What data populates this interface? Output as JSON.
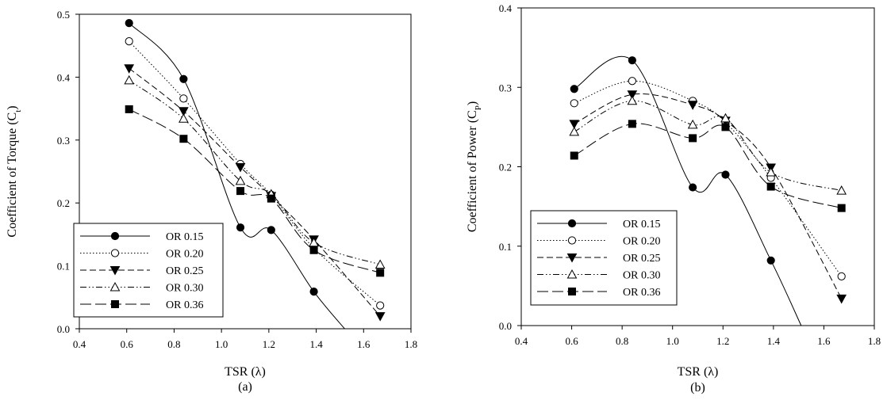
{
  "chart_data": [
    {
      "id": "a",
      "type": "line",
      "panel_label": "(a)",
      "xlabel": "TSR (λ)",
      "ylabel_main": "Coefficient of Torque (C",
      "ylabel_sub": "t",
      "ylabel_end": ")",
      "xlim": [
        0.4,
        1.8
      ],
      "ylim": [
        0.0,
        0.5
      ],
      "xticks": [
        0.4,
        0.6,
        0.8,
        1.0,
        1.2,
        1.4,
        1.6,
        1.8
      ],
      "yticks": [
        0.0,
        0.1,
        0.2,
        0.3,
        0.4,
        0.5
      ],
      "xtick_labels": [
        "0.4",
        "0.6",
        "0.8",
        "1.0",
        "1.2",
        "1.4",
        "1.6",
        "1.8"
      ],
      "ytick_labels": [
        "0.0",
        "0.1",
        "0.2",
        "0.3",
        "0.4",
        "0.5"
      ],
      "legend_position": "bottom-left",
      "series": [
        {
          "name": "OR 0.15",
          "marker": "circle-filled",
          "dash": "",
          "x": [
            0.61,
            0.84,
            1.08,
            1.21,
            1.39,
            1.52
          ],
          "y": [
            0.486,
            0.397,
            0.161,
            0.157,
            0.059,
            0.0
          ],
          "marker_count": 5
        },
        {
          "name": "OR 0.20",
          "marker": "circle-open",
          "dash": "1.5,2.5",
          "x": [
            0.61,
            0.84,
            1.08,
            1.21,
            1.39,
            1.67
          ],
          "y": [
            0.457,
            0.366,
            0.262,
            0.213,
            0.128,
            0.037
          ],
          "marker_count": 6
        },
        {
          "name": "OR 0.25",
          "marker": "triangle-down-filled",
          "dash": "8,4",
          "x": [
            0.61,
            0.84,
            1.08,
            1.21,
            1.39,
            1.67
          ],
          "y": [
            0.414,
            0.346,
            0.257,
            0.211,
            0.142,
            0.02
          ],
          "marker_count": 6
        },
        {
          "name": "OR 0.30",
          "marker": "triangle-up-open",
          "dash": "8,3,1.5,3,1.5,3",
          "x": [
            0.61,
            0.84,
            1.08,
            1.21,
            1.39,
            1.67
          ],
          "y": [
            0.395,
            0.334,
            0.235,
            0.214,
            0.137,
            0.102
          ],
          "marker_count": 6
        },
        {
          "name": "OR 0.36",
          "marker": "square-filled",
          "dash": "14,5",
          "x": [
            0.61,
            0.84,
            1.08,
            1.21,
            1.39,
            1.67
          ],
          "y": [
            0.349,
            0.302,
            0.219,
            0.207,
            0.125,
            0.089
          ],
          "marker_count": 6
        }
      ]
    },
    {
      "id": "b",
      "type": "line",
      "panel_label": "(b)",
      "xlabel": "TSR (λ)",
      "ylabel_main": "Coefficient of Power (C",
      "ylabel_sub": "P",
      "ylabel_end": ")",
      "xlim": [
        0.4,
        1.8
      ],
      "ylim": [
        0.0,
        0.4
      ],
      "xticks": [
        0.4,
        0.6,
        0.8,
        1.0,
        1.2,
        1.4,
        1.6,
        1.8
      ],
      "yticks": [
        0.0,
        0.1,
        0.2,
        0.3,
        0.4
      ],
      "xtick_labels": [
        "0.4",
        "0.6",
        "0.8",
        "1.0",
        "1.2",
        "1.4",
        "1.6",
        "1.8"
      ],
      "ytick_labels": [
        "0.0",
        "0.1",
        "0.2",
        "0.3",
        "0.4"
      ],
      "legend_position": "bottom-left",
      "series": [
        {
          "name": "OR 0.15",
          "marker": "circle-filled",
          "dash": "",
          "x": [
            0.61,
            0.84,
            1.08,
            1.21,
            1.39,
            1.51
          ],
          "y": [
            0.298,
            0.334,
            0.174,
            0.19,
            0.082,
            0.0
          ],
          "marker_count": 5
        },
        {
          "name": "OR 0.20",
          "marker": "circle-open",
          "dash": "1.5,2.5",
          "x": [
            0.61,
            0.84,
            1.08,
            1.21,
            1.39,
            1.67
          ],
          "y": [
            0.28,
            0.308,
            0.283,
            0.256,
            0.186,
            0.062
          ],
          "marker_count": 6
        },
        {
          "name": "OR 0.25",
          "marker": "triangle-down-filled",
          "dash": "8,4",
          "x": [
            0.61,
            0.84,
            1.08,
            1.21,
            1.39,
            1.67
          ],
          "y": [
            0.254,
            0.291,
            0.278,
            0.258,
            0.199,
            0.034
          ],
          "marker_count": 6
        },
        {
          "name": "OR 0.30",
          "marker": "triangle-up-open",
          "dash": "8,3,1.5,3,1.5,3",
          "x": [
            0.61,
            0.84,
            1.08,
            1.21,
            1.39,
            1.67
          ],
          "y": [
            0.244,
            0.283,
            0.253,
            0.261,
            0.193,
            0.17
          ],
          "marker_count": 6
        },
        {
          "name": "OR 0.36",
          "marker": "square-filled",
          "dash": "14,5",
          "x": [
            0.61,
            0.84,
            1.08,
            1.21,
            1.39,
            1.67
          ],
          "y": [
            0.214,
            0.254,
            0.236,
            0.25,
            0.175,
            0.148
          ],
          "marker_count": 6
        }
      ]
    }
  ]
}
